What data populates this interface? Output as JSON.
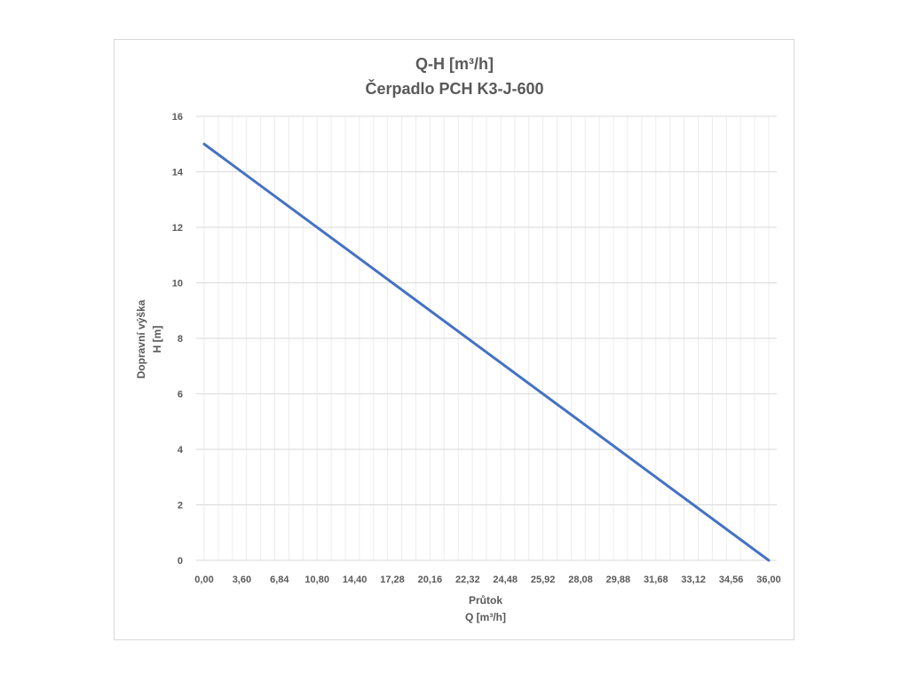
{
  "chart_data": {
    "type": "line",
    "title": "Q-H  [m³/h]",
    "subtitle": "Čerpadlo PCH K3-J-600",
    "xlabel": "Průtok",
    "xlabel2": "Q [m³/h]",
    "ylabel": "Dopravní výška",
    "ylabel2": "H [m]",
    "x_tick_labels": [
      "0,00",
      "3,60",
      "6,84",
      "10,80",
      "14,40",
      "17,28",
      "20,16",
      "22,32",
      "24,48",
      "25,92",
      "28,08",
      "29,88",
      "31,68",
      "33,12",
      "34,56",
      "36,00"
    ],
    "ylim": [
      0,
      16
    ],
    "y_ticks": [
      0,
      2,
      4,
      6,
      8,
      10,
      12,
      14,
      16
    ],
    "grid": true,
    "legend": "none",
    "series_color": "#4472c4",
    "series": [
      {
        "x": [
          0,
          36
        ],
        "y": [
          15,
          0
        ]
      }
    ]
  }
}
